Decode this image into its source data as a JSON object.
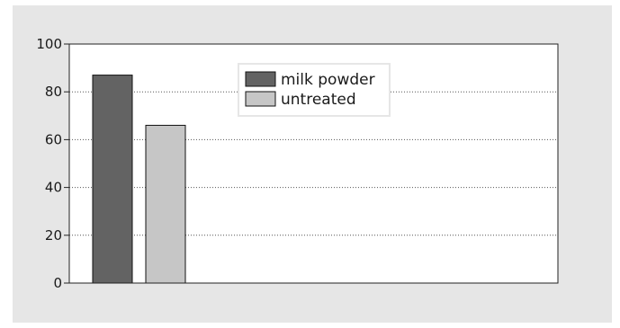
{
  "chart_data": {
    "type": "bar",
    "title": "",
    "xlabel": "",
    "ylabel": "",
    "ylim": [
      0,
      100
    ],
    "yticks": [
      0,
      20,
      40,
      60,
      80,
      100
    ],
    "grid": "horizontal-dotted",
    "legend_position": "top-center",
    "series": [
      {
        "name": "milk powder",
        "value": 87,
        "color": "#636363"
      },
      {
        "name": "untreated",
        "value": 66,
        "color": "#c6c6c6"
      }
    ]
  }
}
